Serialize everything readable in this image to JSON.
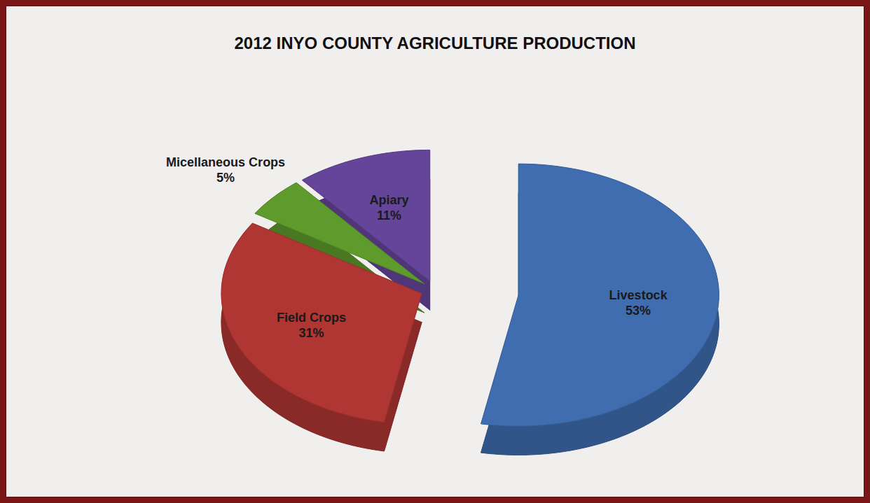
{
  "chart_data": {
    "type": "pie",
    "title": "2012 INYO COUNTY AGRICULTURE PRODUCTION",
    "categories": [
      "Livestock",
      "Field Crops",
      "Micellaneous Crops",
      "Apiary"
    ],
    "values": [
      53,
      31,
      5,
      11
    ],
    "value_labels": [
      "53%",
      "31%",
      "5%",
      "11%"
    ],
    "colors": [
      "#3f6db0",
      "#b03633",
      "#5f9a2c",
      "#65459a"
    ],
    "data_labels": true
  }
}
